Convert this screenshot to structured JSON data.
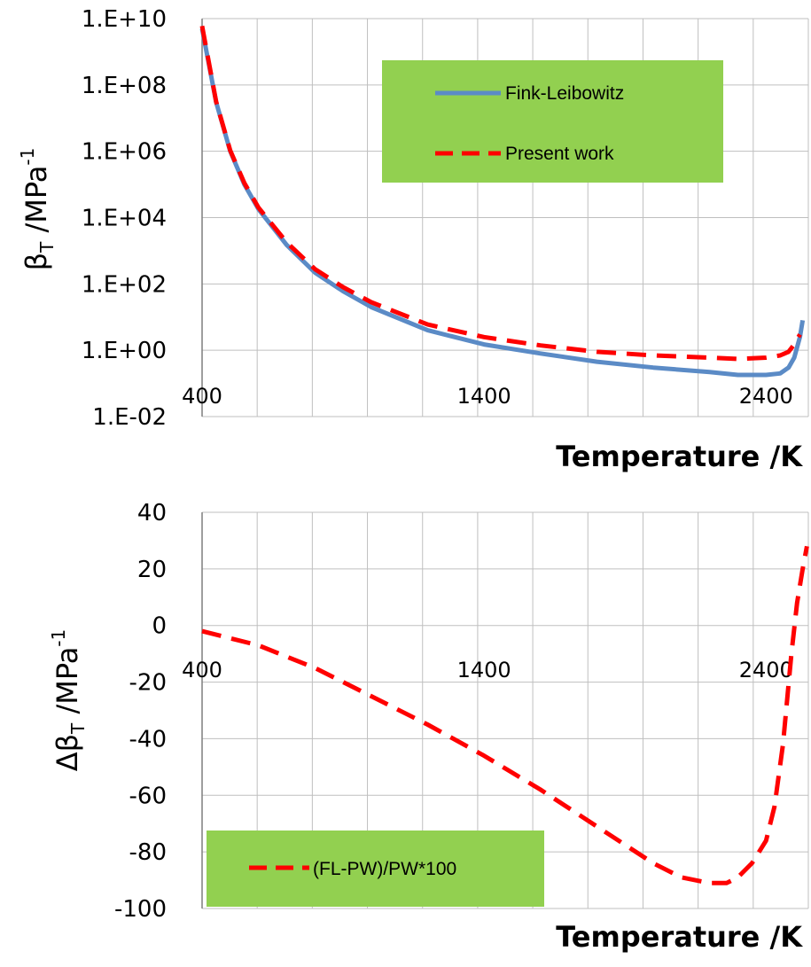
{
  "chart_data": [
    {
      "type": "line",
      "xlabel": "Temperature /K",
      "ylabel_main": "β",
      "ylabel_sub": "T",
      "ylabel_unit": " /MPa",
      "ylabel_sup": "-1",
      "xlim": [
        400,
        2550
      ],
      "ylim": [
        0.01,
        10000000000
      ],
      "yscale": "log",
      "x_tick_labels": [
        "400",
        "1400",
        "2400"
      ],
      "y_tick_labels": [
        "1.E-02",
        "1.E+00",
        "1.E+02",
        "1.E+04",
        "1.E+06",
        "1.E+08",
        "1.E+10"
      ],
      "grid": true,
      "legend_position": "top-right",
      "legend_background": "#92d050",
      "series": [
        {
          "name": "Fink-Leibowitz",
          "color": "#5b8bc6",
          "style": "solid",
          "x": [
            400,
            450,
            500,
            550,
            600,
            700,
            800,
            900,
            1000,
            1200,
            1400,
            1600,
            1800,
            2000,
            2200,
            2300,
            2400,
            2450,
            2480,
            2500,
            2520,
            2530
          ],
          "y": [
            5000000000,
            30000000,
            1000000,
            100000,
            18000,
            1500,
            220,
            60,
            20,
            4,
            1.5,
            0.8,
            0.45,
            0.3,
            0.22,
            0.18,
            0.18,
            0.2,
            0.3,
            0.6,
            2.5,
            8
          ]
        },
        {
          "name": "Present work",
          "color": "#ff0000",
          "style": "dashed",
          "x": [
            400,
            450,
            500,
            550,
            600,
            700,
            800,
            900,
            1000,
            1200,
            1400,
            1600,
            1800,
            2000,
            2200,
            2300,
            2400,
            2450,
            2480,
            2500,
            2520
          ],
          "y": [
            6000000000,
            31000000,
            1050000,
            110000,
            20000,
            1800,
            280,
            80,
            28,
            6,
            2.5,
            1.4,
            0.9,
            0.7,
            0.6,
            0.55,
            0.6,
            0.7,
            0.9,
            1.5,
            3
          ]
        }
      ]
    },
    {
      "type": "line",
      "xlabel": "Temperature /K",
      "ylabel_main": "Δβ",
      "ylabel_sub": "T",
      "ylabel_unit": " /MPa",
      "ylabel_sup": "-1",
      "xlim": [
        400,
        2550
      ],
      "ylim": [
        -100,
        40
      ],
      "x_tick_labels": [
        "400",
        "1400",
        "2400"
      ],
      "y_tick_labels": [
        "-100",
        "-80",
        "-60",
        "-40",
        "-20",
        "0",
        "20",
        "40"
      ],
      "grid": true,
      "legend_position": "bottom-left",
      "legend_background": "#92d050",
      "series": [
        {
          "name": "(FL-PW)/PW*100",
          "color": "#ff0000",
          "style": "dashed",
          "x": [
            400,
            600,
            800,
            1000,
            1200,
            1400,
            1600,
            1800,
            2000,
            2100,
            2200,
            2260,
            2300,
            2350,
            2400,
            2430,
            2460,
            2490,
            2510,
            2530,
            2545
          ],
          "y": [
            -2,
            -7,
            -15,
            -25,
            -35,
            -46,
            -58,
            -71,
            -84,
            -89,
            -91,
            -91,
            -89,
            -84,
            -76,
            -64,
            -42,
            -10,
            8,
            20,
            28
          ]
        }
      ]
    }
  ]
}
